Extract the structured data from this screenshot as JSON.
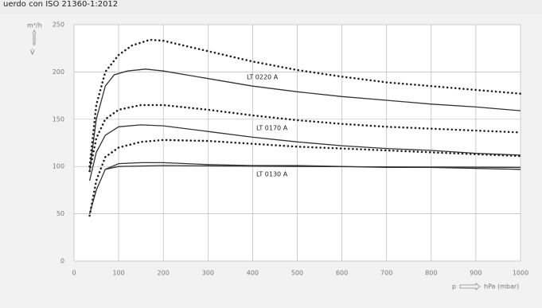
{
  "chart_data": {
    "type": "line",
    "title": "uerdo con ISO 21360-1:2012",
    "y_unit": "m³/h",
    "y_symbol": "V̇",
    "x_symbol": "p",
    "x_unit": "hPa (mbar)",
    "xlim": [
      0,
      1000
    ],
    "xticks": [
      0,
      100,
      200,
      300,
      400,
      500,
      600,
      700,
      800,
      900,
      1000
    ],
    "ylim": [
      0,
      250
    ],
    "yticks": [
      0,
      50,
      100,
      150,
      200,
      250
    ],
    "grid": true,
    "series": [
      {
        "name": "LT 0220 A",
        "color": "#333333",
        "dash": false,
        "x": [
          35,
          50,
          70,
          90,
          120,
          160,
          200,
          300,
          400,
          500,
          600,
          700,
          800,
          900,
          1000
        ],
        "values": [
          95,
          150,
          185,
          197,
          201,
          203,
          201,
          193,
          185,
          179,
          174,
          170,
          166,
          163,
          159
        ]
      },
      {
        "color": "#222222",
        "dash": true,
        "x": [
          35,
          50,
          70,
          100,
          130,
          170,
          200,
          300,
          400,
          500,
          600,
          700,
          800,
          900,
          1000
        ],
        "values": [
          100,
          165,
          200,
          218,
          228,
          234,
          233,
          222,
          211,
          202,
          195,
          189,
          185,
          181,
          177
        ]
      },
      {
        "name": "LT 0170 A",
        "color": "#333333",
        "dash": false,
        "x": [
          35,
          50,
          70,
          100,
          150,
          200,
          300,
          400,
          500,
          600,
          700,
          800,
          900,
          1000
        ],
        "values": [
          85,
          115,
          133,
          142,
          144,
          143,
          137,
          131,
          126,
          122,
          119,
          117,
          114,
          112
        ]
      },
      {
        "color": "#222222",
        "dash": true,
        "x": [
          35,
          50,
          70,
          100,
          150,
          200,
          300,
          400,
          500,
          600,
          700,
          800,
          900,
          1000
        ],
        "values": [
          95,
          130,
          150,
          160,
          165,
          165,
          160,
          154,
          149,
          145,
          142,
          140,
          138,
          136
        ]
      },
      {
        "name": "LT 0130 A",
        "color": "#333333",
        "dash": false,
        "x": [
          35,
          50,
          70,
          100,
          150,
          200,
          300,
          400,
          500,
          600,
          700,
          800,
          900,
          1000
        ],
        "values": [
          50,
          75,
          97,
          103,
          104,
          104,
          102,
          101,
          101,
          100,
          99,
          99,
          98,
          97
        ]
      },
      {
        "color": "#333333",
        "dash": false,
        "x": [
          70,
          100,
          200,
          500,
          1000
        ],
        "values": [
          97,
          100,
          101,
          100,
          99
        ]
      },
      {
        "color": "#222222",
        "dash": true,
        "x": [
          35,
          50,
          70,
          100,
          150,
          200,
          300,
          400,
          500,
          600,
          700,
          800,
          900,
          1000
        ],
        "values": [
          48,
          85,
          110,
          120,
          126,
          128,
          127,
          124,
          121,
          119,
          117,
          115,
          113,
          111
        ]
      }
    ]
  }
}
